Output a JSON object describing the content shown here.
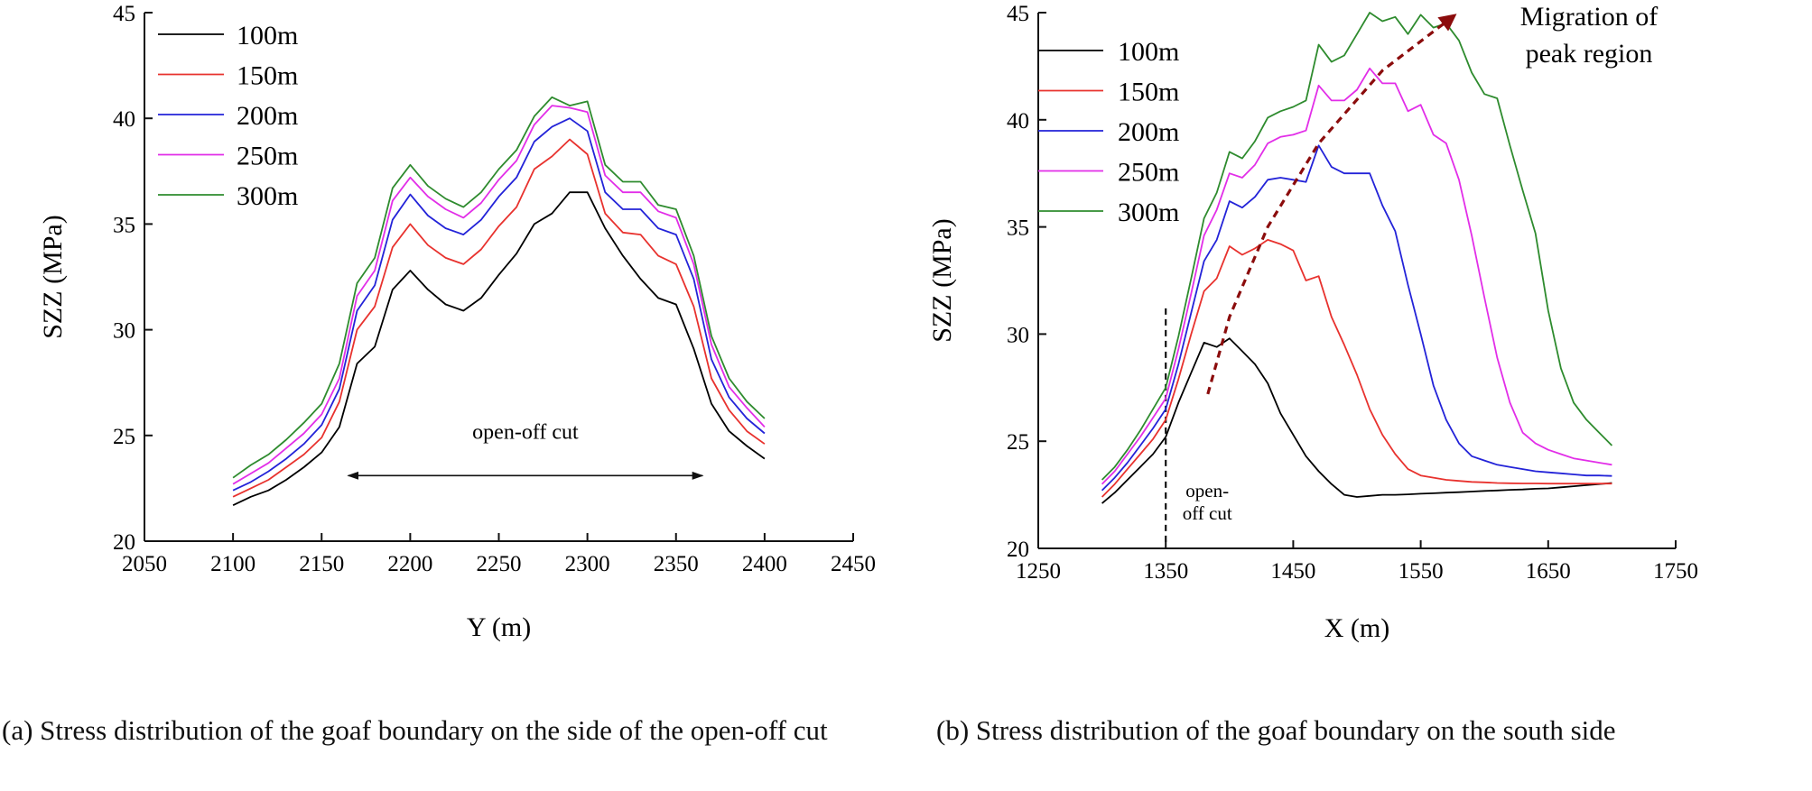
{
  "chart_data": [
    {
      "type": "line",
      "id": "a",
      "caption": "(a) Stress distribution of the goaf boundary on the side of the open-off cut",
      "xlabel": "Y (m)",
      "ylabel": "SZZ (MPa)",
      "xlim": [
        2050,
        2450
      ],
      "ylim": [
        20,
        45
      ],
      "xticks": [
        2050,
        2100,
        2150,
        2200,
        2250,
        2300,
        2350,
        2400,
        2450
      ],
      "yticks": [
        20,
        25,
        30,
        35,
        40,
        45
      ],
      "x": [
        2100,
        2110,
        2120,
        2130,
        2140,
        2150,
        2160,
        2170,
        2180,
        2190,
        2200,
        2210,
        2220,
        2230,
        2240,
        2250,
        2260,
        2270,
        2280,
        2290,
        2300,
        2310,
        2320,
        2330,
        2340,
        2350,
        2360,
        2370,
        2380,
        2390,
        2400
      ],
      "series": [
        {
          "name": "100m",
          "color": "#000000",
          "values": [
            21.7,
            22.1,
            22.4,
            22.9,
            23.5,
            24.2,
            25.4,
            28.4,
            29.2,
            31.9,
            32.8,
            31.9,
            31.2,
            30.9,
            31.5,
            32.6,
            33.6,
            35.0,
            35.5,
            36.5,
            36.5,
            34.8,
            33.5,
            32.4,
            31.5,
            31.2,
            29.1,
            26.5,
            25.2,
            24.5,
            23.9
          ]
        },
        {
          "name": "150m",
          "color": "#e8322e",
          "values": [
            22.1,
            22.5,
            22.9,
            23.5,
            24.1,
            24.9,
            26.6,
            30.0,
            31.1,
            33.9,
            35.0,
            34.0,
            33.4,
            33.1,
            33.8,
            34.9,
            35.8,
            37.6,
            38.2,
            39.0,
            38.3,
            35.5,
            34.6,
            34.5,
            33.5,
            33.1,
            31.1,
            27.7,
            26.2,
            25.2,
            24.6
          ]
        },
        {
          "name": "200m",
          "color": "#2323d8",
          "values": [
            22.4,
            22.8,
            23.3,
            23.9,
            24.6,
            25.5,
            27.2,
            30.9,
            32.1,
            35.2,
            36.4,
            35.4,
            34.8,
            34.5,
            35.2,
            36.3,
            37.2,
            38.9,
            39.6,
            40.0,
            39.4,
            36.5,
            35.7,
            35.7,
            34.8,
            34.5,
            32.4,
            28.6,
            26.8,
            25.8,
            25.1
          ]
        },
        {
          "name": "250m",
          "color": "#e22ee8",
          "values": [
            22.7,
            23.2,
            23.7,
            24.4,
            25.1,
            26.0,
            27.7,
            31.6,
            32.8,
            36.1,
            37.2,
            36.3,
            35.7,
            35.3,
            36.0,
            37.1,
            38.0,
            39.7,
            40.6,
            40.5,
            40.3,
            37.3,
            36.5,
            36.5,
            35.6,
            35.3,
            33.1,
            29.3,
            27.3,
            26.3,
            25.4
          ]
        },
        {
          "name": "300m",
          "color": "#2e8b2e",
          "values": [
            23.0,
            23.6,
            24.1,
            24.8,
            25.6,
            26.5,
            28.4,
            32.2,
            33.4,
            36.7,
            37.8,
            36.8,
            36.2,
            35.8,
            36.5,
            37.6,
            38.5,
            40.1,
            41.0,
            40.6,
            40.8,
            37.8,
            37.0,
            37.0,
            35.9,
            35.7,
            33.5,
            29.7,
            27.7,
            26.6,
            25.8
          ]
        }
      ],
      "annotations": {
        "arrow_text": "open-off cut",
        "arrow_from_x": 2165,
        "arrow_to_x": 2365,
        "arrow_y": 23.1
      }
    },
    {
      "type": "line",
      "id": "b",
      "caption": "(b) Stress distribution of the goaf boundary on the south side",
      "xlabel": "X (m)",
      "ylabel": "SZZ (MPa)",
      "xlim": [
        1250,
        1750
      ],
      "ylim": [
        20,
        45
      ],
      "xticks": [
        1250,
        1350,
        1450,
        1550,
        1650,
        1750
      ],
      "yticks": [
        20,
        25,
        30,
        35,
        40,
        45
      ],
      "x": [
        1300,
        1310,
        1320,
        1330,
        1340,
        1350,
        1360,
        1370,
        1380,
        1390,
        1400,
        1410,
        1420,
        1430,
        1440,
        1450,
        1460,
        1470,
        1480,
        1490,
        1500,
        1510,
        1520,
        1530,
        1540,
        1550,
        1560,
        1570,
        1580,
        1590,
        1600,
        1610,
        1620,
        1630,
        1640,
        1650,
        1660,
        1670,
        1680,
        1690,
        1700
      ],
      "series": [
        {
          "name": "100m",
          "color": "#000000",
          "values": [
            22.1,
            22.6,
            23.2,
            23.8,
            24.4,
            25.2,
            26.8,
            28.2,
            29.6,
            29.4,
            29.8,
            29.2,
            28.6,
            27.7,
            26.3,
            25.3,
            24.3,
            23.6,
            23.0,
            22.5,
            22.4,
            22.45,
            22.5,
            22.5,
            22.52,
            22.55,
            22.57,
            22.6,
            22.62,
            22.65,
            22.68,
            22.7,
            22.73,
            22.75,
            22.78,
            22.8,
            22.85,
            22.9,
            22.95,
            23.0,
            23.05
          ]
        },
        {
          "name": "150m",
          "color": "#e8322e",
          "values": [
            22.4,
            23.0,
            23.7,
            24.4,
            25.1,
            26.0,
            27.9,
            30.0,
            32.0,
            32.6,
            34.1,
            33.7,
            34.0,
            34.4,
            34.2,
            33.9,
            32.5,
            32.7,
            30.8,
            29.5,
            28.1,
            26.5,
            25.3,
            24.4,
            23.7,
            23.4,
            23.3,
            23.2,
            23.15,
            23.1,
            23.08,
            23.05,
            23.04,
            23.03,
            23.03,
            23.02,
            23.02,
            23.02,
            23.02,
            23.02,
            23.02
          ]
        },
        {
          "name": "200m",
          "color": "#2323d8",
          "values": [
            22.7,
            23.3,
            24.0,
            24.8,
            25.6,
            26.5,
            28.6,
            31.0,
            33.4,
            34.4,
            36.2,
            35.9,
            36.4,
            37.2,
            37.3,
            37.2,
            37.1,
            38.8,
            37.8,
            37.5,
            37.5,
            37.5,
            36.0,
            34.8,
            32.3,
            30.0,
            27.6,
            26.0,
            24.9,
            24.3,
            24.1,
            23.9,
            23.8,
            23.7,
            23.6,
            23.55,
            23.5,
            23.45,
            23.4,
            23.4,
            23.38
          ]
        },
        {
          "name": "250m",
          "color": "#e22ee8",
          "values": [
            23.0,
            23.6,
            24.4,
            25.2,
            26.1,
            27.0,
            29.3,
            31.9,
            34.6,
            35.8,
            37.5,
            37.3,
            37.9,
            38.9,
            39.2,
            39.3,
            39.5,
            41.6,
            40.9,
            40.9,
            41.4,
            42.4,
            41.7,
            41.7,
            40.4,
            40.7,
            39.3,
            38.9,
            37.2,
            34.6,
            31.7,
            28.9,
            26.8,
            25.4,
            24.9,
            24.6,
            24.4,
            24.2,
            24.1,
            24.0,
            23.9
          ]
        },
        {
          "name": "300m",
          "color": "#2e8b2e",
          "values": [
            23.2,
            23.8,
            24.6,
            25.5,
            26.5,
            27.5,
            29.9,
            32.6,
            35.4,
            36.6,
            38.5,
            38.2,
            39.0,
            40.1,
            40.4,
            40.6,
            40.9,
            43.5,
            42.7,
            43.0,
            44.0,
            45.0,
            44.6,
            44.8,
            44.0,
            44.9,
            44.3,
            44.5,
            43.7,
            42.2,
            41.2,
            41.0,
            38.8,
            36.7,
            34.7,
            31.1,
            28.4,
            26.8,
            26.0,
            25.4,
            24.8
          ]
        }
      ],
      "annotations": {
        "dashed_x": 1350,
        "dashed_y_top": 31.2,
        "open_off_text": "open-",
        "open_off_text2": "off cut",
        "migration_text": "Migration of",
        "migration_text2": "peak region",
        "arrow_points": [
          [
            1383,
            27.2
          ],
          [
            1400,
            30.8
          ],
          [
            1430,
            35.0
          ],
          [
            1470,
            38.9
          ],
          [
            1520,
            42.3
          ],
          [
            1575,
            44.8
          ]
        ]
      }
    }
  ]
}
